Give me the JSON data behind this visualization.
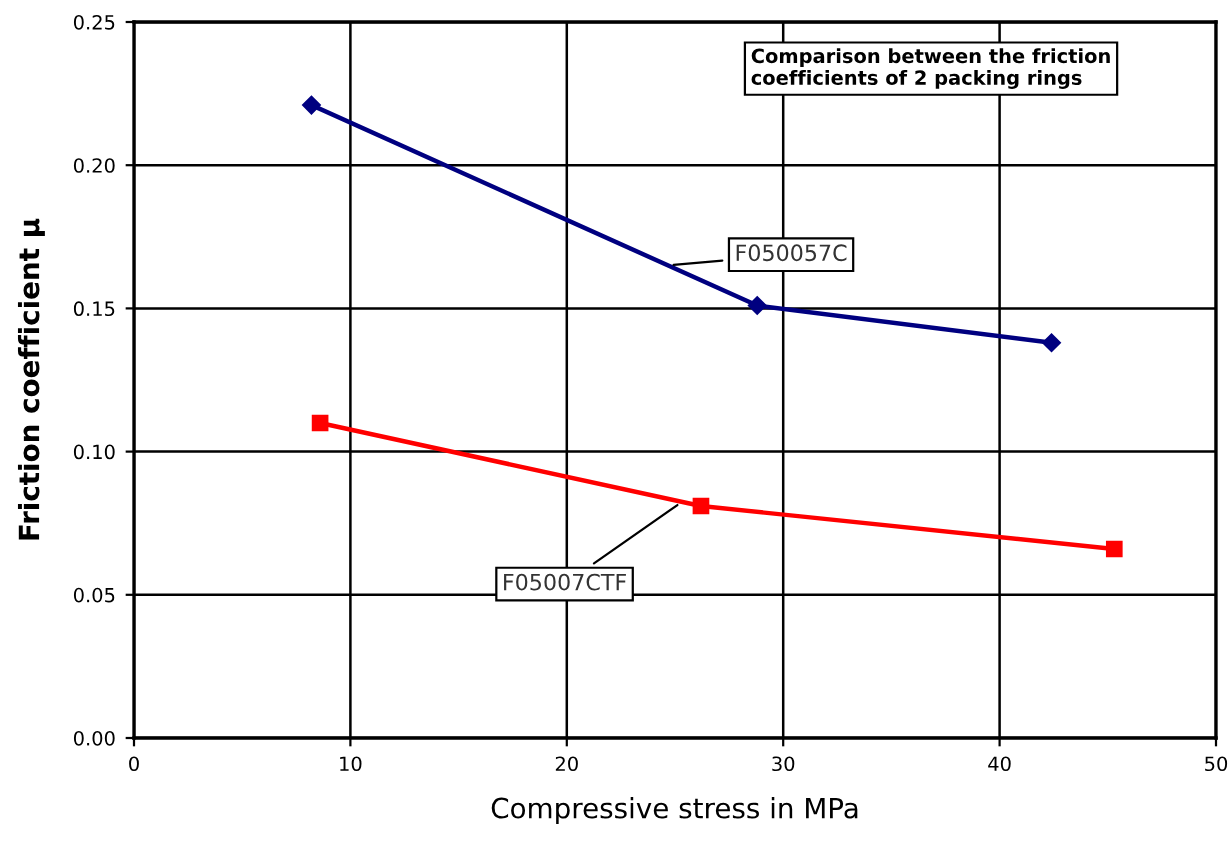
{
  "chart_data": {
    "type": "line",
    "title": "Comparison between the friction coefficients of 2 packing rings",
    "xlabel": "Compressive stress in MPa",
    "ylabel": "Friction coefficient μ",
    "series": [
      {
        "name": "F050057C",
        "color": "#000080",
        "marker": "diamond",
        "x": [
          8.2,
          28.8,
          42.4
        ],
        "values": [
          0.221,
          0.151,
          0.138
        ]
      },
      {
        "name": "F05007CTF",
        "color": "#ff0000",
        "marker": "square",
        "x": [
          8.6,
          26.2,
          45.3
        ],
        "values": [
          0.11,
          0.081,
          0.066
        ]
      }
    ],
    "xlim": [
      0,
      50
    ],
    "xticks": [
      0,
      10,
      20,
      30,
      40,
      50
    ],
    "ylim": [
      0,
      0.25
    ],
    "yticks": [
      {
        "value": 0,
        "label": "0.00"
      },
      {
        "value": 0.05,
        "label": "0.05"
      },
      {
        "value": 0.1,
        "label": "0.10"
      },
      {
        "value": 0.15,
        "label": "0.15"
      },
      {
        "value": 0.2,
        "label": "0.20"
      },
      {
        "value": 0.25,
        "label": "0.25"
      }
    ],
    "grid": true,
    "legend": false,
    "line_style": "solid"
  }
}
